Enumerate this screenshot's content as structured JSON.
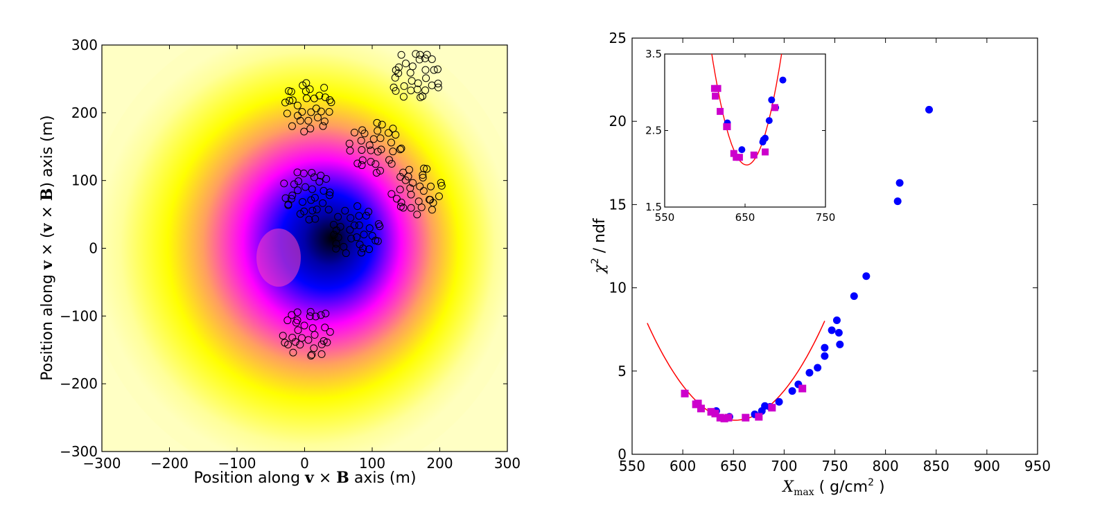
{
  "chart_data": [
    {
      "type": "heatmap",
      "xlabel": "Position along v × B axis (m)",
      "xlabel_parts": [
        "Position along ",
        "v",
        " × ",
        "B",
        " axis (m)"
      ],
      "ylabel": "Position along v × (v × B) axis (m)",
      "ylabel_parts": [
        "Position along ",
        "v",
        " × (",
        "v",
        " × ",
        "B",
        ") axis (m)"
      ],
      "xlim": [
        -300,
        300
      ],
      "ylim": [
        -300,
        300
      ],
      "x_ticks": [
        "−300",
        "−200",
        "−100",
        "0",
        "100",
        "200",
        "300"
      ],
      "y_ticks": [
        "−300",
        "−200",
        "−100",
        "0",
        "100",
        "200",
        "300"
      ],
      "colormap": [
        "#000000",
        "#0000ff",
        "#ff00ff",
        "#ffff00",
        "#ffffe0"
      ],
      "footprint": {
        "center": [
          30,
          10
        ],
        "description_colors": "black core, blue, magenta, yellow edge"
      },
      "antenna_clusters": [
        {
          "center": [
            5,
            210
          ]
        },
        {
          "center": [
            165,
            255
          ]
        },
        {
          "center": [
            105,
            150
          ]
        },
        {
          "center": [
            165,
            85
          ]
        },
        {
          "center": [
            5,
            80
          ]
        },
        {
          "center": [
            75,
            25
          ]
        },
        {
          "center": [
            5,
            -125
          ]
        }
      ]
    },
    {
      "type": "scatter",
      "xlabel": "X_max ( g/cm^2 )",
      "ylabel": "χ^2 / ndf",
      "xlim": [
        550,
        950
      ],
      "ylim": [
        0,
        25
      ],
      "x_ticks": [
        "550",
        "600",
        "650",
        "700",
        "750",
        "800",
        "850",
        "900",
        "950"
      ],
      "y_ticks": [
        "0",
        "5",
        "10",
        "15",
        "20",
        "25"
      ],
      "series": [
        {
          "marker": "circle",
          "color": "#0000ff",
          "points": [
            [
              633,
              2.6
            ],
            [
              646,
              2.25
            ],
            [
              671,
              2.4
            ],
            [
              678,
              2.6
            ],
            [
              681,
              2.9
            ],
            [
              686,
              2.85
            ],
            [
              695,
              3.15
            ],
            [
              708,
              3.8
            ],
            [
              714,
              4.2
            ],
            [
              725,
              4.9
            ],
            [
              733,
              5.2
            ],
            [
              740,
              5.9
            ],
            [
              740,
              6.4
            ],
            [
              747,
              7.45
            ],
            [
              752,
              8.05
            ],
            [
              754,
              7.3
            ],
            [
              755,
              6.6
            ],
            [
              769,
              9.5
            ],
            [
              781,
              10.7
            ],
            [
              812,
              15.2
            ],
            [
              814,
              16.3
            ],
            [
              843,
              20.7
            ]
          ]
        },
        {
          "marker": "square",
          "color": "#cc00cc",
          "points": [
            [
              602,
              3.65
            ],
            [
              613,
              3.0
            ],
            [
              615,
              3.05
            ],
            [
              618,
              2.75
            ],
            [
              628,
              2.55
            ],
            [
              632,
              2.45
            ],
            [
              637,
              2.2
            ],
            [
              641,
              2.15
            ],
            [
              645,
              2.2
            ],
            [
              662,
              2.2
            ],
            [
              675,
              2.25
            ],
            [
              688,
              2.8
            ],
            [
              718,
              3.95
            ]
          ]
        }
      ],
      "fit": {
        "color": "#ff0000",
        "form": "parabola",
        "vertex": [
          652,
          2.05
        ],
        "x_range": [
          565,
          740
        ]
      },
      "inset": {
        "xlim": [
          550,
          750
        ],
        "ylim": [
          1.5,
          3.5
        ],
        "x_ticks": [
          "550",
          "650",
          "750"
        ],
        "y_ticks": [
          "1.5",
          "2.5",
          "3.5"
        ],
        "series": [
          {
            "marker": "circle",
            "color": "#0000ff",
            "points": [
              [
                628,
                2.6
              ],
              [
                646,
                2.25
              ],
              [
                672,
                2.35
              ],
              [
                673,
                2.38
              ],
              [
                675,
                2.4
              ],
              [
                680,
                2.63
              ],
              [
                683,
                2.9
              ],
              [
                688,
                2.8
              ],
              [
                697,
                3.16
              ]
            ]
          },
          {
            "marker": "square",
            "color": "#cc00cc",
            "points": [
              [
                612,
                3.05
              ],
              [
                613,
                2.95
              ],
              [
                616,
                3.05
              ],
              [
                619,
                2.75
              ],
              [
                627,
                2.55
              ],
              [
                628,
                2.55
              ],
              [
                636,
                2.2
              ],
              [
                639,
                2.15
              ],
              [
                643,
                2.15
              ],
              [
                661,
                2.18
              ],
              [
                675,
                2.22
              ],
              [
                687,
                2.8
              ]
            ]
          }
        ],
        "fit": {
          "color": "#ff0000",
          "form": "parabola",
          "vertex": [
            652,
            2.05
          ],
          "x_range": [
            608,
            700
          ]
        }
      }
    }
  ]
}
